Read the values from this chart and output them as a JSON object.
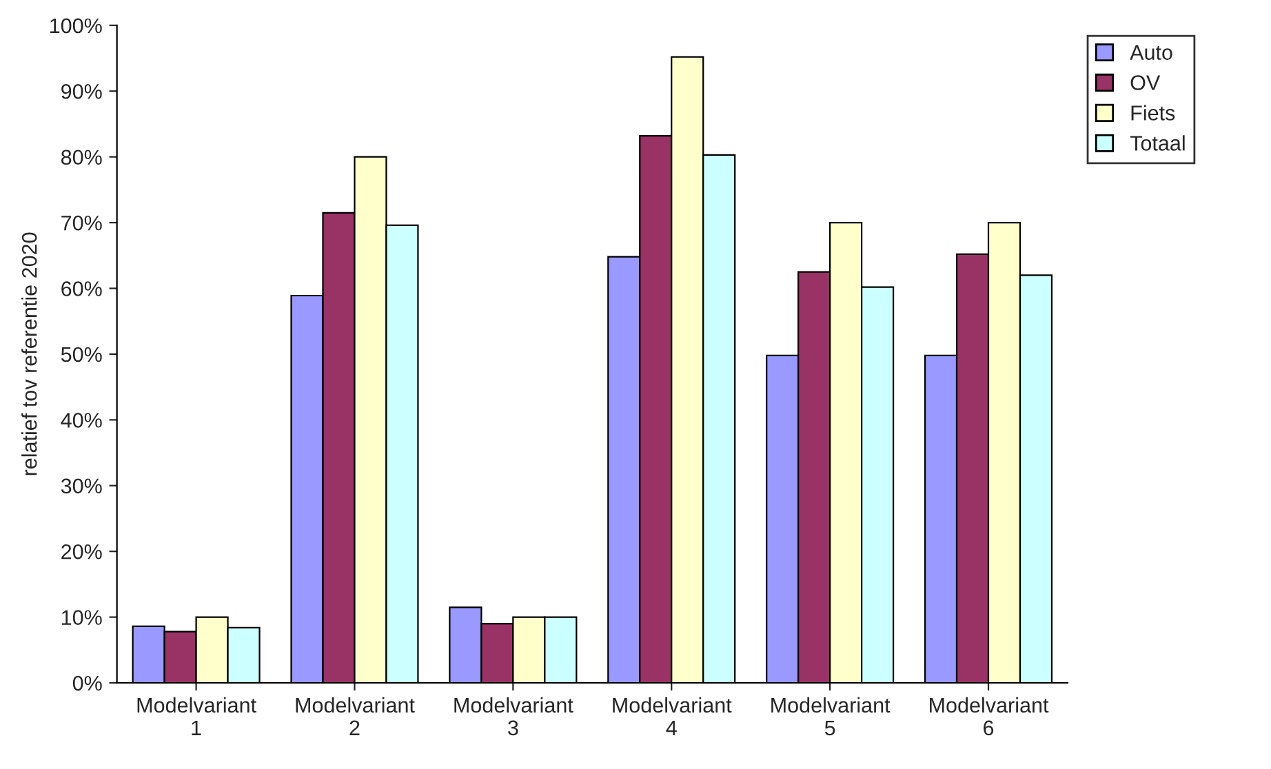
{
  "chart_data": {
    "type": "bar",
    "ylabel": "relatief tov referentie 2020",
    "categories": [
      "Modelvariant\n1",
      "Modelvariant\n2",
      "Modelvariant\n3",
      "Modelvariant\n4",
      "Modelvariant\n5",
      "Modelvariant\n6"
    ],
    "series": [
      {
        "name": "Auto",
        "color": "#9999ff",
        "values": [
          8.6,
          58.9,
          11.5,
          64.8,
          49.8,
          49.8
        ]
      },
      {
        "name": "OV",
        "color": "#993366",
        "values": [
          7.8,
          71.5,
          9,
          83.2,
          62.5,
          65.2
        ]
      },
      {
        "name": "Fiets",
        "color": "#ffffcc",
        "values": [
          10,
          80,
          10,
          95.2,
          70,
          70
        ]
      },
      {
        "name": "Totaal",
        "color": "#ccffff",
        "values": [
          8.4,
          69.6,
          10,
          80.3,
          60.2,
          62
        ]
      }
    ],
    "ylim": [
      0,
      100
    ],
    "yticks": [
      {
        "value": 0,
        "label": "0%"
      },
      {
        "value": 10,
        "label": "10%"
      },
      {
        "value": 20,
        "label": "20%"
      },
      {
        "value": 30,
        "label": "30%"
      },
      {
        "value": 40,
        "label": "40%"
      },
      {
        "value": 50,
        "label": "50%"
      },
      {
        "value": 60,
        "label": "60%"
      },
      {
        "value": 70,
        "label": "70%"
      },
      {
        "value": 80,
        "label": "80%"
      },
      {
        "value": 90,
        "label": "90%"
      },
      {
        "value": 100,
        "label": "100%"
      }
    ],
    "grid": false,
    "legend": "top right"
  }
}
